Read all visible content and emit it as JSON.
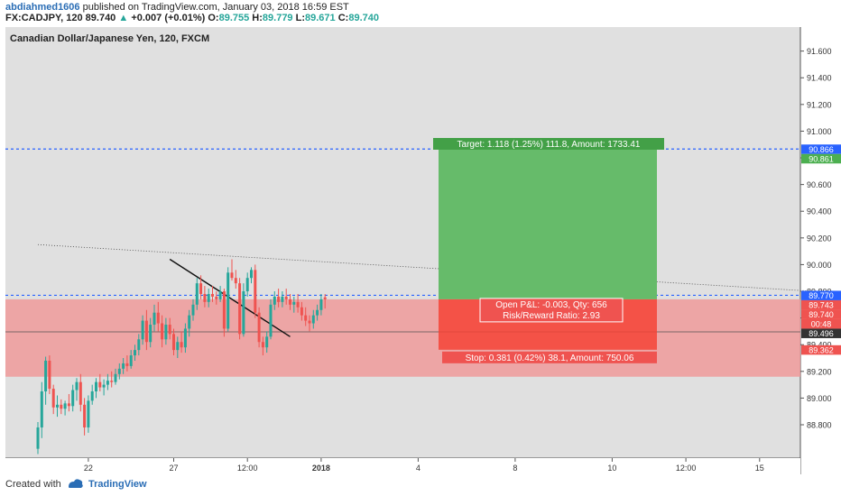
{
  "header": {
    "user": "abdiahmed1606",
    "published_text": "published on TradingView.com, January 03, 2018 16:59 EST",
    "symbol": "FX:CADJPY, 120",
    "last": "89.740",
    "change_arrow": "▲",
    "change": "+0.007 (+0.01%)",
    "o_label": "O:",
    "o_value": "89.755",
    "h_label": "H:",
    "h_value": "89.779",
    "l_label": "L:",
    "l_value": "89.671",
    "c_label": "C:",
    "c_value": "89.740"
  },
  "footer": {
    "created_with": "Created with",
    "brand": "TradingView"
  },
  "colors": {
    "bull": "#26a69a",
    "bear": "#ef5350",
    "profit_zone": "#4caf50",
    "loss_zone": "#ef5350",
    "target_line": "#2962ff",
    "panel_bg": "#e0e0e0"
  },
  "chart_data": {
    "type": "candlestick",
    "title": "Canadian Dollar/Japanese Yen, 120, FXCM",
    "xlabel": "",
    "ylabel": "",
    "ylim": [
      88.55,
      91.78
    ],
    "y_ticks": [
      "91.600",
      "91.400",
      "91.200",
      "91.000",
      "90.800",
      "90.600",
      "90.400",
      "90.200",
      "90.000",
      "89.800",
      "89.600",
      "89.400",
      "89.200",
      "89.000",
      "88.800"
    ],
    "x_ticks": [
      {
        "label": "22",
        "bar": 13
      },
      {
        "label": "27",
        "bar": 35
      },
      {
        "label": "12:00",
        "bar": 54
      },
      {
        "label": "2018",
        "bar": 73
      },
      {
        "label": "4",
        "bar": 98
      },
      {
        "label": "8",
        "bar": 123
      },
      {
        "label": "10",
        "bar": 148
      },
      {
        "label": "12:00",
        "bar": 167
      },
      {
        "label": "15",
        "bar": 186
      }
    ],
    "candles": [
      {
        "o": 88.62,
        "h": 88.82,
        "l": 88.58,
        "c": 88.78
      },
      {
        "o": 88.78,
        "h": 89.12,
        "l": 88.7,
        "c": 89.05
      },
      {
        "o": 89.05,
        "h": 89.31,
        "l": 88.95,
        "c": 89.28
      },
      {
        "o": 89.28,
        "h": 89.32,
        "l": 89.03,
        "c": 89.07
      },
      {
        "o": 89.07,
        "h": 89.1,
        "l": 88.88,
        "c": 88.93
      },
      {
        "o": 88.93,
        "h": 89.02,
        "l": 88.86,
        "c": 88.95
      },
      {
        "o": 88.95,
        "h": 88.99,
        "l": 88.88,
        "c": 88.92
      },
      {
        "o": 88.92,
        "h": 88.98,
        "l": 88.87,
        "c": 88.96
      },
      {
        "o": 88.96,
        "h": 89.03,
        "l": 88.9,
        "c": 88.94
      },
      {
        "o": 88.94,
        "h": 89.1,
        "l": 88.9,
        "c": 89.06
      },
      {
        "o": 89.06,
        "h": 89.15,
        "l": 88.98,
        "c": 89.12
      },
      {
        "o": 89.12,
        "h": 89.18,
        "l": 88.9,
        "c": 88.95
      },
      {
        "o": 88.95,
        "h": 89.0,
        "l": 88.72,
        "c": 88.78
      },
      {
        "o": 88.78,
        "h": 89.02,
        "l": 88.74,
        "c": 88.98
      },
      {
        "o": 88.98,
        "h": 89.1,
        "l": 88.95,
        "c": 89.05
      },
      {
        "o": 89.05,
        "h": 89.15,
        "l": 89.0,
        "c": 89.12
      },
      {
        "o": 89.12,
        "h": 89.18,
        "l": 89.05,
        "c": 89.08
      },
      {
        "o": 89.08,
        "h": 89.14,
        "l": 89.02,
        "c": 89.1
      },
      {
        "o": 89.1,
        "h": 89.18,
        "l": 89.06,
        "c": 89.13
      },
      {
        "o": 89.13,
        "h": 89.2,
        "l": 89.08,
        "c": 89.12
      },
      {
        "o": 89.12,
        "h": 89.22,
        "l": 89.1,
        "c": 89.18
      },
      {
        "o": 89.18,
        "h": 89.26,
        "l": 89.14,
        "c": 89.22
      },
      {
        "o": 89.22,
        "h": 89.3,
        "l": 89.18,
        "c": 89.26
      },
      {
        "o": 89.26,
        "h": 89.32,
        "l": 89.2,
        "c": 89.24
      },
      {
        "o": 89.24,
        "h": 89.36,
        "l": 89.22,
        "c": 89.32
      },
      {
        "o": 89.32,
        "h": 89.4,
        "l": 89.28,
        "c": 89.36
      },
      {
        "o": 89.36,
        "h": 89.48,
        "l": 89.32,
        "c": 89.44
      },
      {
        "o": 89.44,
        "h": 89.62,
        "l": 89.4,
        "c": 89.58
      },
      {
        "o": 89.58,
        "h": 89.66,
        "l": 89.36,
        "c": 89.42
      },
      {
        "o": 89.42,
        "h": 89.6,
        "l": 89.38,
        "c": 89.55
      },
      {
        "o": 89.55,
        "h": 89.7,
        "l": 89.5,
        "c": 89.64
      },
      {
        "o": 89.64,
        "h": 89.72,
        "l": 89.5,
        "c": 89.56
      },
      {
        "o": 89.56,
        "h": 89.62,
        "l": 89.38,
        "c": 89.44
      },
      {
        "o": 89.44,
        "h": 89.6,
        "l": 89.4,
        "c": 89.55
      },
      {
        "o": 89.55,
        "h": 89.6,
        "l": 89.44,
        "c": 89.48
      },
      {
        "o": 89.48,
        "h": 89.52,
        "l": 89.32,
        "c": 89.36
      },
      {
        "o": 89.36,
        "h": 89.46,
        "l": 89.3,
        "c": 89.42
      },
      {
        "o": 89.42,
        "h": 89.5,
        "l": 89.34,
        "c": 89.38
      },
      {
        "o": 89.38,
        "h": 89.56,
        "l": 89.34,
        "c": 89.52
      },
      {
        "o": 89.52,
        "h": 89.66,
        "l": 89.46,
        "c": 89.62
      },
      {
        "o": 89.62,
        "h": 89.74,
        "l": 89.58,
        "c": 89.7
      },
      {
        "o": 89.7,
        "h": 89.9,
        "l": 89.66,
        "c": 89.86
      },
      {
        "o": 89.86,
        "h": 89.92,
        "l": 89.74,
        "c": 89.78
      },
      {
        "o": 89.78,
        "h": 89.84,
        "l": 89.68,
        "c": 89.72
      },
      {
        "o": 89.72,
        "h": 89.82,
        "l": 89.68,
        "c": 89.78
      },
      {
        "o": 89.78,
        "h": 89.84,
        "l": 89.72,
        "c": 89.76
      },
      {
        "o": 89.76,
        "h": 89.8,
        "l": 89.7,
        "c": 89.74
      },
      {
        "o": 89.74,
        "h": 89.84,
        "l": 89.72,
        "c": 89.8
      },
      {
        "o": 89.8,
        "h": 89.82,
        "l": 89.46,
        "c": 89.52
      },
      {
        "o": 89.52,
        "h": 89.98,
        "l": 89.5,
        "c": 89.94
      },
      {
        "o": 89.94,
        "h": 90.04,
        "l": 89.88,
        "c": 89.9
      },
      {
        "o": 89.9,
        "h": 89.96,
        "l": 89.82,
        "c": 89.86
      },
      {
        "o": 89.86,
        "h": 89.9,
        "l": 89.44,
        "c": 89.48
      },
      {
        "o": 89.48,
        "h": 89.86,
        "l": 89.46,
        "c": 89.8
      },
      {
        "o": 89.8,
        "h": 89.94,
        "l": 89.76,
        "c": 89.9
      },
      {
        "o": 89.9,
        "h": 89.98,
        "l": 89.86,
        "c": 89.96
      },
      {
        "o": 89.96,
        "h": 90.0,
        "l": 89.6,
        "c": 89.64
      },
      {
        "o": 89.64,
        "h": 89.68,
        "l": 89.38,
        "c": 89.42
      },
      {
        "o": 89.42,
        "h": 89.46,
        "l": 89.32,
        "c": 89.38
      },
      {
        "o": 89.38,
        "h": 89.5,
        "l": 89.34,
        "c": 89.46
      },
      {
        "o": 89.46,
        "h": 89.74,
        "l": 89.44,
        "c": 89.7
      },
      {
        "o": 89.7,
        "h": 89.8,
        "l": 89.66,
        "c": 89.76
      },
      {
        "o": 89.76,
        "h": 89.82,
        "l": 89.68,
        "c": 89.72
      },
      {
        "o": 89.72,
        "h": 89.8,
        "l": 89.68,
        "c": 89.76
      },
      {
        "o": 89.76,
        "h": 89.82,
        "l": 89.7,
        "c": 89.74
      },
      {
        "o": 89.74,
        "h": 89.78,
        "l": 89.66,
        "c": 89.7
      },
      {
        "o": 89.7,
        "h": 89.76,
        "l": 89.64,
        "c": 89.72
      },
      {
        "o": 89.72,
        "h": 89.78,
        "l": 89.64,
        "c": 89.68
      },
      {
        "o": 89.68,
        "h": 89.72,
        "l": 89.58,
        "c": 89.62
      },
      {
        "o": 89.62,
        "h": 89.68,
        "l": 89.54,
        "c": 89.58
      },
      {
        "o": 89.58,
        "h": 89.62,
        "l": 89.5,
        "c": 89.56
      },
      {
        "o": 89.56,
        "h": 89.66,
        "l": 89.52,
        "c": 89.62
      },
      {
        "o": 89.62,
        "h": 89.7,
        "l": 89.58,
        "c": 89.66
      },
      {
        "o": 89.66,
        "h": 89.78,
        "l": 89.62,
        "c": 89.74
      },
      {
        "o": 89.755,
        "h": 89.779,
        "l": 89.671,
        "c": 89.74
      }
    ],
    "position": {
      "entry": 89.74,
      "target": 90.861,
      "stop": 89.362,
      "target_label": "Target: 1.118 (1.25%) 111.8, Amount: 1733.41",
      "stop_label": "Stop: 0.381 (0.42%) 38.1, Amount: 750.06",
      "pnl_label": "Open P&L: -0.003, Qty: 656",
      "rr_label": "Risk/Reward Ratio: 2.93"
    },
    "zones": {
      "upper": 89.74,
      "lower": 89.16
    },
    "horizontal_lines": {
      "dashed_top": 90.866,
      "dashed_mid": 89.77,
      "solid": 89.496
    },
    "trendline": {
      "start": {
        "bar": 34,
        "price": 90.04
      },
      "end": {
        "bar": 65,
        "price": 89.46
      }
    },
    "dotted_line": {
      "start": {
        "bar": 0,
        "price": 90.15
      },
      "end": {
        "bar": 200,
        "price": 89.8
      }
    },
    "price_labels": [
      {
        "price": 90.866,
        "label": "90.866",
        "bg": "#2962ff"
      },
      {
        "price": 90.861,
        "label": "90.861",
        "bg": "#4caf50"
      },
      {
        "price": 89.77,
        "label": "89.770",
        "bg": "#2962ff"
      },
      {
        "price": 89.743,
        "label": "89.743",
        "bg": "#ef5350"
      },
      {
        "price": 89.74,
        "label": "89.740",
        "bg": "#ef5350"
      },
      {
        "price": 89.64,
        "label": "00:48",
        "bg": "#ef5350"
      },
      {
        "price": 89.496,
        "label": "89.496",
        "bg": "#333333"
      },
      {
        "price": 89.362,
        "label": "89.362",
        "bg": "#ef5350"
      }
    ]
  }
}
